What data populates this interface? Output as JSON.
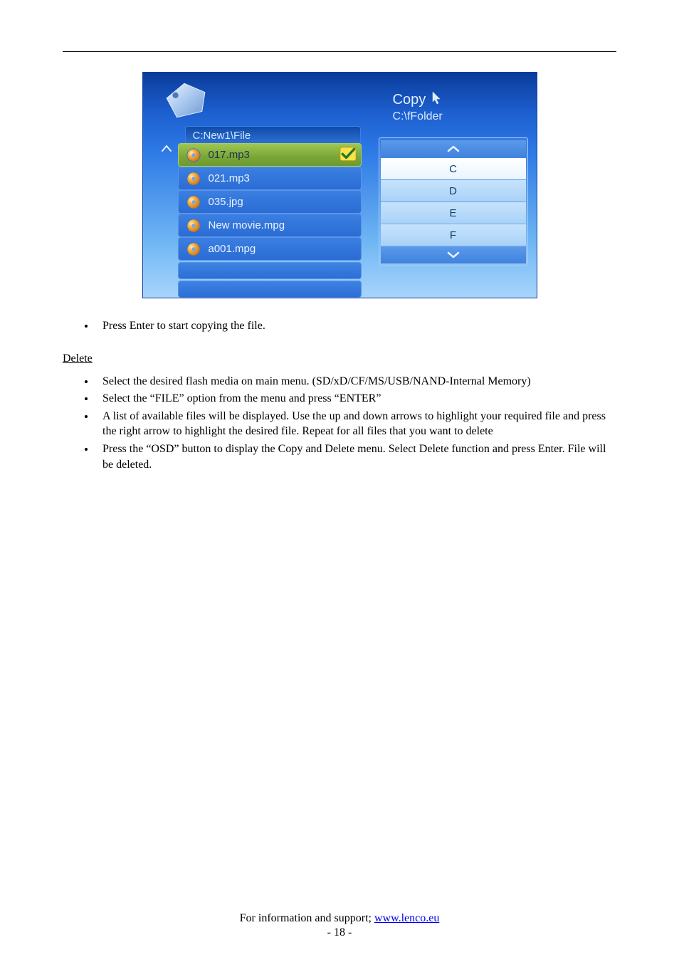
{
  "screenshot": {
    "copy_label": "Copy",
    "copy_sub": "C:\\fFolder",
    "path": "C:New1\\File",
    "files": [
      {
        "name": "017.mp3",
        "selected": true,
        "checked": true
      },
      {
        "name": "021.mp3",
        "selected": false,
        "checked": false
      },
      {
        "name": "035.jpg",
        "selected": false,
        "checked": false
      },
      {
        "name": "New movie.mpg",
        "selected": false,
        "checked": false
      },
      {
        "name": "a001.mpg",
        "selected": false,
        "checked": false
      }
    ],
    "drives": {
      "up": "⌃",
      "items": [
        "C",
        "D",
        "E",
        "F"
      ],
      "selected": "C",
      "down": "⌄"
    }
  },
  "body": {
    "bullet_after_img": "Press Enter to start copying the file.",
    "delete_heading": "Delete",
    "delete_bullets": [
      "Select the desired flash media on main menu. (SD/xD/CF/MS/USB/NAND-Internal Memory)",
      "Select the “FILE” option from the menu and press “ENTER”",
      "A list of available files will be displayed. Use the up and down arrows to highlight your required file and press the right arrow to highlight the desired file. Repeat for all files that you want to delete",
      "Press the “OSD” button to display the Copy and Delete menu. Select Delete function and press Enter. File will be deleted."
    ]
  },
  "footer": {
    "text": "For information and support; ",
    "link_text": "www.lenco.eu",
    "page": "- 18 -"
  }
}
